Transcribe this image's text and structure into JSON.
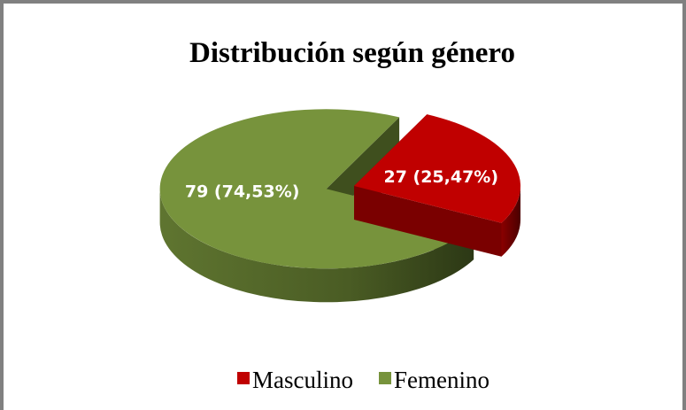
{
  "chart_data": {
    "type": "pie",
    "title": "Distribución según género",
    "categories": [
      "Masculino",
      "Femenino"
    ],
    "values": [
      27,
      79
    ],
    "value_labels": [
      "27 (25,47%)",
      "79 (74,53%)"
    ],
    "colors": [
      "#c00000",
      "#77933c"
    ],
    "legend": "bottom"
  }
}
